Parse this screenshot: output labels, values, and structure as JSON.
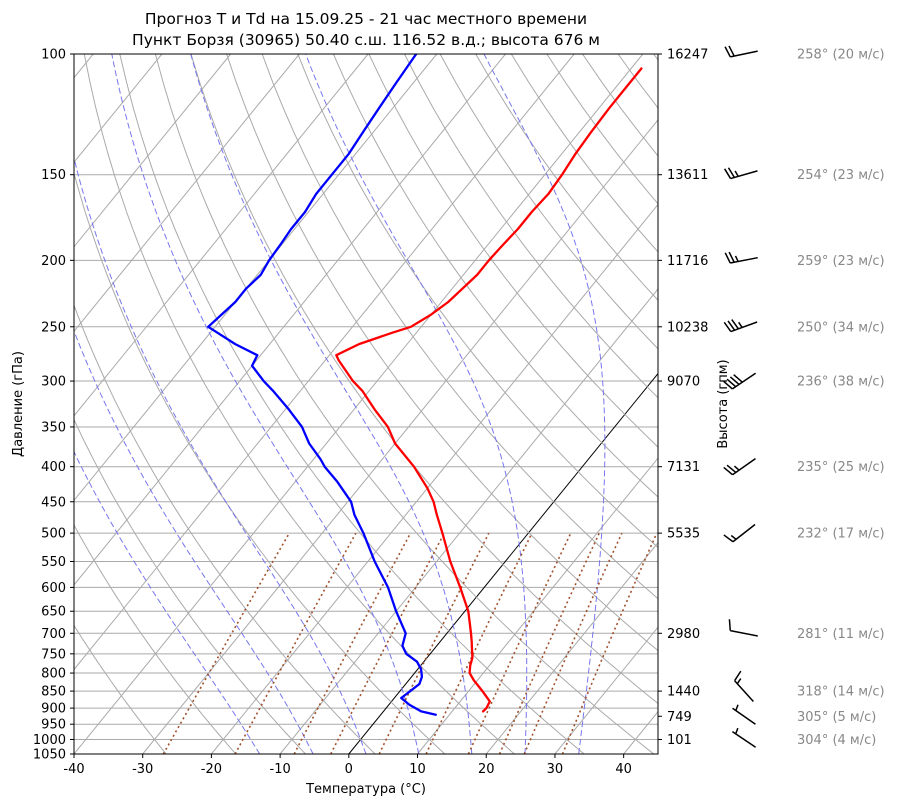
{
  "chart_data": {
    "type": "line",
    "title_line1": "Прогноз T и Td на 15.09.25 - 21 час местного времени",
    "title_line2": "Пункт Борзя (30965) 50.40 с.ш. 116.52 в.д.; высота 676 м",
    "xlabel": "Температура (°C)",
    "ylabel": "Давление (гПа)",
    "ylabel_right": "Высота (гпм)",
    "xlim": [
      -40,
      45
    ],
    "ylim": [
      1050,
      100
    ],
    "y_scale": "log",
    "skew": true,
    "x_ticks": [
      -40,
      -30,
      -20,
      -10,
      0,
      10,
      20,
      30,
      40
    ],
    "pressure_ticks": [
      100,
      150,
      200,
      250,
      300,
      350,
      400,
      450,
      500,
      550,
      600,
      650,
      700,
      750,
      800,
      850,
      900,
      950,
      1000,
      1050
    ],
    "height_labels": [
      {
        "p": 100,
        "h": "16247"
      },
      {
        "p": 150,
        "h": "13611"
      },
      {
        "p": 200,
        "h": "11716"
      },
      {
        "p": 250,
        "h": "10238"
      },
      {
        "p": 300,
        "h": "9070"
      },
      {
        "p": 400,
        "h": "7131"
      },
      {
        "p": 500,
        "h": "5535"
      },
      {
        "p": 700,
        "h": "2980"
      },
      {
        "p": 850,
        "h": "1440"
      },
      {
        "p": 925,
        "h": "749"
      },
      {
        "p": 1000,
        "h": "101"
      }
    ],
    "series": [
      {
        "name": "",
        "color": "#ff0000",
        "p": [
          910,
          900,
          880,
          850,
          820,
          800,
          780,
          760,
          740,
          720,
          700,
          650,
          600,
          550,
          500,
          470,
          450,
          430,
          400,
          370,
          350,
          330,
          310,
          300,
          280,
          275,
          265,
          255,
          250,
          240,
          230,
          220,
          210,
          200,
          190,
          180,
          170,
          160,
          150,
          140,
          130,
          120,
          110,
          105
        ],
        "t": [
          14.5,
          14.6,
          14.3,
          12.0,
          9.5,
          8.0,
          7.2,
          6.6,
          5.6,
          4.6,
          3.5,
          0.5,
          -3.5,
          -8.0,
          -12.5,
          -15.5,
          -17.5,
          -20.0,
          -24.5,
          -30.0,
          -33.0,
          -37.0,
          -41.0,
          -43.5,
          -48.0,
          -49.0,
          -47.0,
          -43.5,
          -41.5,
          -40.0,
          -39.0,
          -38.5,
          -38.0,
          -38.0,
          -37.8,
          -37.5,
          -37.5,
          -37.2,
          -37.5,
          -38.0,
          -38.3,
          -38.5,
          -38.5,
          -38.5
        ]
      },
      {
        "name": "",
        "color": "#0000ff",
        "p": [
          920,
          910,
          890,
          870,
          850,
          830,
          810,
          790,
          770,
          750,
          730,
          700,
          650,
          600,
          550,
          500,
          470,
          450,
          420,
          400,
          390,
          370,
          350,
          330,
          310,
          300,
          285,
          275,
          265,
          250,
          240,
          230,
          220,
          210,
          200,
          190,
          180,
          170,
          160,
          150,
          140,
          130,
          120,
          110,
          100
        ],
        "t": [
          8.0,
          5.5,
          3.0,
          1.0,
          1.5,
          2.0,
          1.5,
          0.5,
          -1.0,
          -3.5,
          -5.0,
          -6.0,
          -10.0,
          -14.0,
          -19.0,
          -24.0,
          -27.5,
          -29.5,
          -34.0,
          -37.5,
          -39.0,
          -42.5,
          -45.5,
          -49.5,
          -54.0,
          -56.5,
          -60.0,
          -60.5,
          -65.0,
          -71.0,
          -70.5,
          -70.0,
          -70.0,
          -69.5,
          -70.0,
          -70.2,
          -70.5,
          -70.5,
          -71.0,
          -71.0,
          -71.0,
          -71.5,
          -72.0,
          -72.5,
          -73.0
        ]
      }
    ],
    "winds": [
      {
        "p": 100,
        "label": "258° (20 м/с)",
        "dir": 258,
        "speed": 20
      },
      {
        "p": 150,
        "label": "254° (23 м/с)",
        "dir": 254,
        "speed": 23
      },
      {
        "p": 200,
        "label": "259° (23 м/с)",
        "dir": 259,
        "speed": 23
      },
      {
        "p": 250,
        "label": "250° (34 м/с)",
        "dir": 250,
        "speed": 34
      },
      {
        "p": 300,
        "label": "236° (38 м/с)",
        "dir": 236,
        "speed": 38
      },
      {
        "p": 400,
        "label": "235° (25 м/с)",
        "dir": 235,
        "speed": 25
      },
      {
        "p": 500,
        "label": "232° (17 м/с)",
        "dir": 232,
        "speed": 17
      },
      {
        "p": 700,
        "label": "281° (11 м/с)",
        "dir": 281,
        "speed": 11
      },
      {
        "p": 850,
        "label": "318° (14 м/с)",
        "dir": 318,
        "speed": 14
      },
      {
        "p": 925,
        "label": "305° (5 м/с)",
        "dir": 305,
        "speed": 5
      },
      {
        "p": 1000,
        "label": "304° (4 м/с)",
        "dir": 304,
        "speed": 4
      }
    ],
    "grid": true,
    "colors": {
      "temperature": "#ff0000",
      "dewpoint": "#0000ff",
      "dry_adiabat": "#aaaaaa",
      "moist_adiabat": "#7777ee",
      "mixing_ratio": "#a0522d",
      "isotherm": "#aaaaaa",
      "zero_isotherm": "#000000",
      "wind_label": "#888888"
    }
  }
}
